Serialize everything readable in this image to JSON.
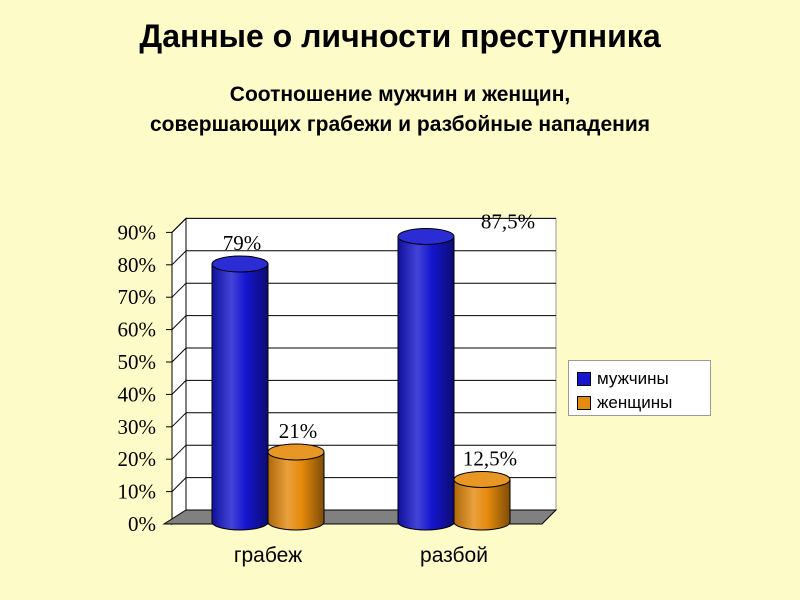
{
  "slide": {
    "title": "Данные о личности преступника"
  },
  "chart_data": {
    "type": "bar",
    "title_line1": "Соотношение мужчин и женщин,",
    "title_line2": "совершающих грабежи и разбойные нападения",
    "categories": [
      "грабеж",
      "разбой"
    ],
    "series": [
      {
        "name": "мужчины",
        "values": [
          79,
          87.5
        ],
        "labels": [
          "79%",
          "87,5%"
        ],
        "color": "#1515d0"
      },
      {
        "name": "женщины",
        "values": [
          21,
          12.5
        ],
        "labels": [
          "21%",
          "12,5%"
        ],
        "color": "#e58a0c"
      }
    ],
    "y_ticks": [
      "0%",
      "10%",
      "20%",
      "30%",
      "40%",
      "50%",
      "60%",
      "70%",
      "80%",
      "90%"
    ],
    "ylim": [
      0,
      90
    ],
    "grid": true,
    "legend_position": "right",
    "style": "3d-cylinder"
  }
}
